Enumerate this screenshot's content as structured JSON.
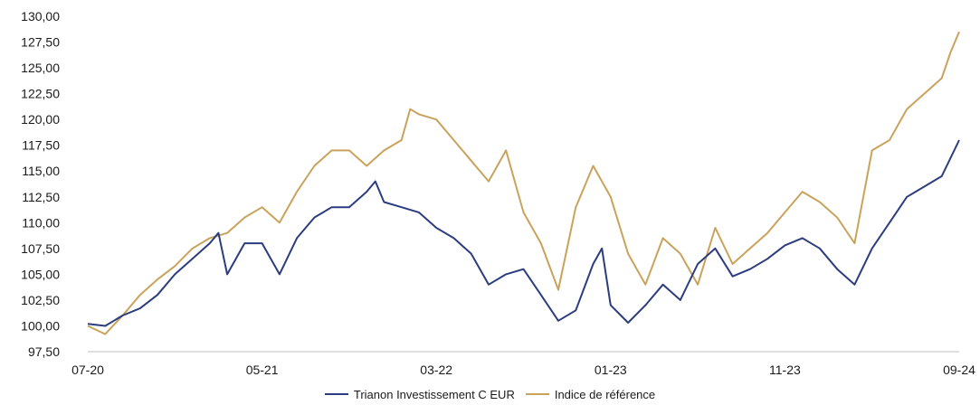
{
  "chart_data": {
    "type": "line",
    "title": "",
    "xlabel": "",
    "ylabel": "",
    "ylim": [
      97.5,
      130
    ],
    "y_ticks": [
      "130,00",
      "127,50",
      "125,00",
      "122,50",
      "120,00",
      "117,50",
      "115,00",
      "112,50",
      "110,00",
      "107,50",
      "105,00",
      "102,50",
      "100,00",
      "97,50"
    ],
    "x_ticks": [
      "07-20",
      "05-21",
      "03-22",
      "01-23",
      "11-23",
      "09-24"
    ],
    "x_range_months": [
      0,
      50
    ],
    "grid": false,
    "legend_position": "bottom",
    "series": [
      {
        "name": "Trianon Investissement C EUR",
        "color": "#2b3d80",
        "points": [
          [
            0,
            100.2
          ],
          [
            1,
            100.0
          ],
          [
            2,
            101.0
          ],
          [
            3,
            101.7
          ],
          [
            4,
            103.0
          ],
          [
            5,
            105.0
          ],
          [
            6,
            106.5
          ],
          [
            7,
            108.0
          ],
          [
            7.5,
            109.0
          ],
          [
            8,
            105.0
          ],
          [
            9,
            108.0
          ],
          [
            10,
            108.0
          ],
          [
            11,
            105.0
          ],
          [
            12,
            108.5
          ],
          [
            13,
            110.5
          ],
          [
            14,
            111.5
          ],
          [
            15,
            111.5
          ],
          [
            16,
            113.0
          ],
          [
            16.5,
            114.0
          ],
          [
            17,
            112.0
          ],
          [
            18,
            111.5
          ],
          [
            19,
            111.0
          ],
          [
            20,
            109.5
          ],
          [
            21,
            108.5
          ],
          [
            22,
            107.0
          ],
          [
            23,
            104.0
          ],
          [
            24,
            105.0
          ],
          [
            25,
            105.5
          ],
          [
            26,
            103.0
          ],
          [
            27,
            100.5
          ],
          [
            28,
            101.5
          ],
          [
            29,
            106.0
          ],
          [
            29.5,
            107.5
          ],
          [
            30,
            102.0
          ],
          [
            31,
            100.3
          ],
          [
            32,
            102.0
          ],
          [
            33,
            104.0
          ],
          [
            34,
            102.5
          ],
          [
            35,
            106.0
          ],
          [
            36,
            107.5
          ],
          [
            37,
            104.8
          ],
          [
            38,
            105.5
          ],
          [
            39,
            106.5
          ],
          [
            40,
            107.8
          ],
          [
            41,
            108.5
          ],
          [
            42,
            107.5
          ],
          [
            43,
            105.5
          ],
          [
            44,
            104.0
          ],
          [
            45,
            107.5
          ],
          [
            46,
            110.0
          ],
          [
            47,
            112.5
          ],
          [
            48,
            113.5
          ],
          [
            49,
            114.5
          ],
          [
            50,
            118.0
          ]
        ]
      },
      {
        "name": "Indice de référence",
        "color": "#c9a35c",
        "points": [
          [
            0,
            100.0
          ],
          [
            1,
            99.2
          ],
          [
            2,
            101.0
          ],
          [
            3,
            103.0
          ],
          [
            4,
            104.5
          ],
          [
            5,
            105.8
          ],
          [
            6,
            107.5
          ],
          [
            7,
            108.5
          ],
          [
            8,
            109.0
          ],
          [
            9,
            110.5
          ],
          [
            10,
            111.5
          ],
          [
            11,
            110.0
          ],
          [
            12,
            113.0
          ],
          [
            13,
            115.5
          ],
          [
            14,
            117.0
          ],
          [
            15,
            117.0
          ],
          [
            16,
            115.5
          ],
          [
            17,
            117.0
          ],
          [
            18,
            118.0
          ],
          [
            18.5,
            121.0
          ],
          [
            19,
            120.5
          ],
          [
            20,
            120.0
          ],
          [
            21,
            118.0
          ],
          [
            22,
            116.0
          ],
          [
            23,
            114.0
          ],
          [
            24,
            117.0
          ],
          [
            25,
            111.0
          ],
          [
            26,
            108.0
          ],
          [
            27,
            103.5
          ],
          [
            28,
            111.5
          ],
          [
            29,
            115.5
          ],
          [
            30,
            112.5
          ],
          [
            31,
            107.0
          ],
          [
            32,
            104.0
          ],
          [
            33,
            108.5
          ],
          [
            34,
            107.0
          ],
          [
            35,
            104.0
          ],
          [
            36,
            109.5
          ],
          [
            37,
            106.0
          ],
          [
            38,
            107.5
          ],
          [
            39,
            109.0
          ],
          [
            40,
            111.0
          ],
          [
            41,
            113.0
          ],
          [
            42,
            112.0
          ],
          [
            43,
            110.5
          ],
          [
            44,
            108.0
          ],
          [
            45,
            117.0
          ],
          [
            46,
            118.0
          ],
          [
            47,
            121.0
          ],
          [
            48,
            122.5
          ],
          [
            49,
            124.0
          ],
          [
            49.5,
            126.5
          ],
          [
            50,
            128.5
          ]
        ]
      }
    ]
  }
}
